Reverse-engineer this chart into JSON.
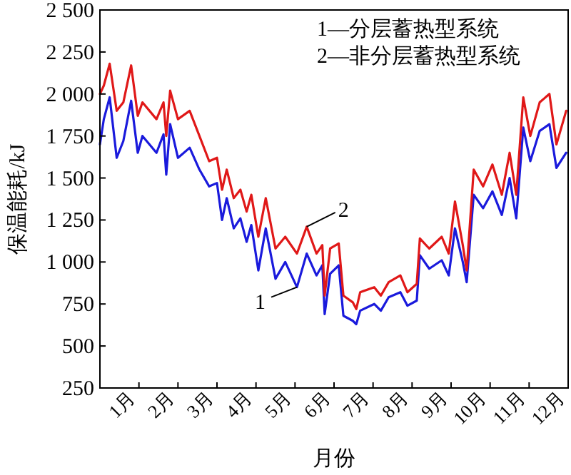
{
  "chart_data": {
    "type": "line",
    "xlabel": "月份",
    "ylabel": "保温能耗/kJ",
    "x": [
      0,
      0.1,
      0.25,
      0.43,
      0.6,
      0.8,
      0.97,
      1.09,
      1.45,
      1.63,
      1.7,
      1.8,
      2.0,
      2.3,
      2.55,
      2.8,
      3.0,
      3.13,
      3.25,
      3.43,
      3.6,
      3.76,
      3.88,
      4.06,
      4.25,
      4.5,
      4.75,
      5.05,
      5.3,
      5.55,
      5.7,
      5.76,
      5.9,
      6.12,
      6.24,
      6.48,
      6.57,
      6.67,
      7.03,
      7.2,
      7.4,
      7.7,
      7.88,
      8.12,
      8.2,
      8.44,
      8.76,
      8.94,
      9.1,
      9.3,
      9.4,
      9.58,
      9.82,
      10.06,
      10.3,
      10.5,
      10.67,
      10.85,
      11.03,
      11.27,
      11.52,
      11.7,
      11.95
    ],
    "series": [
      {
        "color": "#1a1adc",
        "values": [
          1700,
          1850,
          1980,
          1620,
          1720,
          1960,
          1650,
          1750,
          1650,
          1760,
          1520,
          1820,
          1620,
          1680,
          1550,
          1450,
          1470,
          1250,
          1380,
          1200,
          1260,
          1120,
          1220,
          950,
          1200,
          900,
          1000,
          850,
          1050,
          920,
          980,
          690,
          930,
          980,
          680,
          650,
          630,
          710,
          750,
          710,
          790,
          820,
          740,
          770,
          1040,
          960,
          1010,
          920,
          1200,
          1000,
          880,
          1400,
          1320,
          1420,
          1280,
          1500,
          1260,
          1800,
          1600,
          1780,
          1820,
          1560,
          1650
        ]
      },
      {
        "color": "#e01818",
        "values": [
          2000,
          2050,
          2180,
          1900,
          1950,
          2170,
          1870,
          1950,
          1850,
          1950,
          1750,
          2020,
          1850,
          1900,
          1750,
          1600,
          1620,
          1430,
          1550,
          1380,
          1430,
          1300,
          1400,
          1150,
          1380,
          1080,
          1150,
          1050,
          1210,
          1050,
          1100,
          800,
          1080,
          1110,
          800,
          760,
          720,
          820,
          850,
          800,
          880,
          920,
          820,
          870,
          1140,
          1080,
          1150,
          1050,
          1360,
          1100,
          950,
          1550,
          1450,
          1580,
          1400,
          1650,
          1400,
          1980,
          1750,
          1950,
          2000,
          1700,
          1900
        ]
      }
    ],
    "xlim": [
      0,
      12
    ],
    "xticks": [
      {
        "value": 1,
        "label": "1月"
      },
      {
        "value": 2,
        "label": "2月"
      },
      {
        "value": 3,
        "label": "3月"
      },
      {
        "value": 4,
        "label": "4月"
      },
      {
        "value": 5,
        "label": "5月"
      },
      {
        "value": 6,
        "label": "6月"
      },
      {
        "value": 7,
        "label": "7月"
      },
      {
        "value": 8,
        "label": "8月"
      },
      {
        "value": 9,
        "label": "9月"
      },
      {
        "value": 10,
        "label": "10月"
      },
      {
        "value": 11,
        "label": "11月"
      },
      {
        "value": 12,
        "label": "12月"
      }
    ],
    "ylim": [
      250,
      2500
    ],
    "yticks": [
      250,
      500,
      750,
      {
        "value": 1000,
        "label": "1 000"
      },
      {
        "value": 1250,
        "label": "1 250"
      },
      {
        "value": 1500,
        "label": "1 500"
      },
      {
        "value": 1750,
        "label": "1 750"
      },
      {
        "value": 2000,
        "label": "2 000"
      },
      {
        "value": 2250,
        "label": "2 250"
      },
      {
        "value": 2500,
        "label": "2 500"
      }
    ],
    "marker": "none",
    "line_style": "solid",
    "annotations": [
      "1—分层蓄热型系统",
      "2—非分层蓄热型系统",
      {
        "text": "1",
        "x": 5.05,
        "y": 850
      },
      {
        "text": "2",
        "x": 5.3,
        "y": 1210
      }
    ]
  }
}
